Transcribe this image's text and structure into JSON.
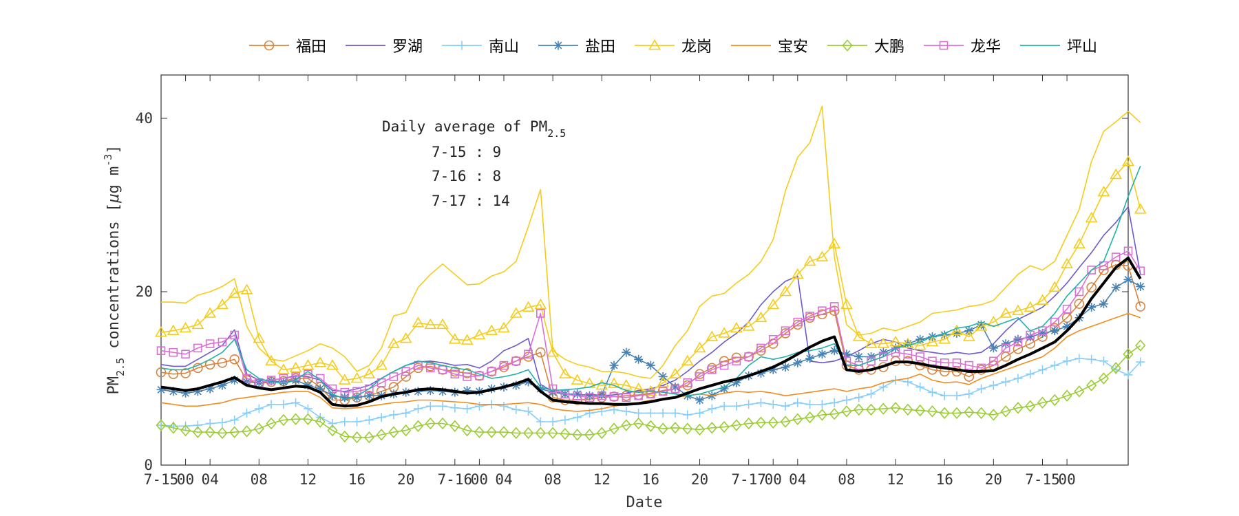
{
  "chart_data": {
    "type": "line",
    "xlabel": "Date",
    "ylabel": "PM",
    "ylabel_sub": "2.5",
    "ylabel_rest": " concentrations [",
    "ylabel_mu": "μ",
    "ylabel_unit": "g m",
    "ylabel_sup": "-3",
    "ylabel_close": "]",
    "ylim": [
      0,
      45
    ],
    "yticks": [
      0,
      20,
      40
    ],
    "xlim": [
      0,
      79
    ],
    "xtick_labels": [
      {
        "x": 0,
        "label": "7-15"
      },
      {
        "x": 2,
        "label": "00"
      },
      {
        "x": 4,
        "label": "04"
      },
      {
        "x": 8,
        "label": "08"
      },
      {
        "x": 12,
        "label": "12"
      },
      {
        "x": 16,
        "label": "16"
      },
      {
        "x": 20,
        "label": "20"
      },
      {
        "x": 24,
        "label": "7-16"
      },
      {
        "x": 26,
        "label": "00"
      },
      {
        "x": 28,
        "label": "04"
      },
      {
        "x": 32,
        "label": "08"
      },
      {
        "x": 36,
        "label": "12"
      },
      {
        "x": 40,
        "label": "16"
      },
      {
        "x": 44,
        "label": "20"
      },
      {
        "x": 48,
        "label": "7-17"
      },
      {
        "x": 50,
        "label": "00"
      },
      {
        "x": 52,
        "label": "04"
      },
      {
        "x": 56,
        "label": "08"
      },
      {
        "x": 60,
        "label": "12"
      },
      {
        "x": 64,
        "label": "16"
      },
      {
        "x": 68,
        "label": "20"
      },
      {
        "x": 72,
        "label": "7-15"
      },
      {
        "x": 74,
        "label": "00"
      }
    ],
    "annotation": {
      "title": "Daily average of PM",
      "title_sub": "2.5",
      "lines": [
        "7-15 : 9",
        "7-16 : 8",
        "7-17 : 14"
      ]
    },
    "legend_position": "top",
    "series": [
      {
        "name": "福田",
        "color": "#D9823B",
        "marker": "circle",
        "values": [
          10.7,
          10.5,
          10.6,
          11.2,
          11.6,
          11.8,
          12.2,
          9.8,
          9.4,
          9.6,
          9.7,
          10.0,
          10.0,
          9.0,
          7.5,
          7.5,
          7.8,
          8.0,
          8.5,
          9.0,
          10.2,
          11.2,
          11.4,
          11.0,
          10.8,
          10.6,
          10.3,
          10.8,
          11.3,
          12.0,
          12.5,
          13.0,
          7.8,
          7.5,
          7.5,
          7.6,
          7.8,
          7.9,
          8.0,
          8.1,
          8.3,
          8.6,
          8.8,
          9.2,
          10.5,
          11.2,
          12.0,
          12.4,
          12.5,
          13.2,
          14.0,
          15.2,
          16.2,
          17.0,
          17.4,
          17.8,
          11.5,
          11.0,
          11.0,
          11.3,
          12.0,
          12.0,
          11.5,
          11.0,
          10.8,
          10.8,
          10.2,
          11.0,
          11.5,
          12.5,
          13.4,
          14.0,
          14.8,
          15.8,
          17.0,
          18.6,
          20.5,
          22.5,
          23.1,
          23.0,
          18.3
        ]
      },
      {
        "name": "罗湖",
        "color": "#6A5ACD",
        "marker": "none",
        "values": [
          11.6,
          11.4,
          11.4,
          12.2,
          13.0,
          13.8,
          15.6,
          10.5,
          9.8,
          9.8,
          10.0,
          10.3,
          10.2,
          9.8,
          8.6,
          8.5,
          8.8,
          9.2,
          10.0,
          10.8,
          11.5,
          11.9,
          12.0,
          11.8,
          11.5,
          11.6,
          11.2,
          12.0,
          13.2,
          13.8,
          14.6,
          9.3,
          8.5,
          8.2,
          8.0,
          8.2,
          8.0,
          8.1,
          8.3,
          8.6,
          8.8,
          9.2,
          9.8,
          10.8,
          12.0,
          13.0,
          14.2,
          15.2,
          16.5,
          18.5,
          20.0,
          21.2,
          21.8,
          12.0,
          11.8,
          12.0,
          12.5,
          13.2,
          14.0,
          14.5,
          14.2,
          13.5,
          13.2,
          13.0,
          12.8,
          13.0,
          12.8,
          13.0,
          14.0,
          15.5,
          16.8,
          17.5,
          18.2,
          19.5,
          21.0,
          22.8,
          24.5,
          26.5,
          28.0,
          29.8,
          22.0
        ]
      },
      {
        "name": "南山",
        "color": "#87CEFA",
        "marker": "plus",
        "values": [
          4.6,
          4.5,
          4.5,
          4.6,
          4.8,
          4.9,
          5.2,
          6.0,
          6.5,
          7.0,
          7.0,
          7.2,
          6.5,
          5.5,
          4.8,
          5.0,
          5.0,
          5.2,
          5.5,
          5.8,
          6.0,
          6.5,
          6.8,
          6.8,
          6.6,
          6.5,
          6.8,
          7.0,
          6.8,
          6.4,
          6.2,
          5.0,
          5.0,
          5.2,
          5.5,
          6.0,
          6.2,
          6.4,
          6.2,
          6.0,
          6.0,
          6.0,
          6.0,
          5.8,
          6.0,
          6.5,
          6.8,
          6.8,
          7.0,
          7.2,
          7.0,
          6.8,
          7.2,
          7.0,
          7.0,
          7.2,
          7.5,
          7.8,
          8.2,
          9.0,
          9.8,
          9.6,
          9.0,
          8.4,
          8.0,
          8.0,
          8.2,
          8.8,
          9.2,
          9.6,
          10.0,
          10.5,
          11.0,
          11.5,
          12.0,
          12.3,
          12.2,
          12.0,
          11.0,
          10.4,
          11.9
        ]
      },
      {
        "name": "盐田",
        "color": "#4682B4",
        "marker": "star",
        "values": [
          8.7,
          8.5,
          8.3,
          8.5,
          8.8,
          9.2,
          9.8,
          9.6,
          9.5,
          9.7,
          9.6,
          9.8,
          9.2,
          8.8,
          8.0,
          7.8,
          7.8,
          8.0,
          8.0,
          8.2,
          8.4,
          8.5,
          8.6,
          8.5,
          8.4,
          8.6,
          8.5,
          8.8,
          9.0,
          9.2,
          9.6,
          8.8,
          8.4,
          8.2,
          8.2,
          8.0,
          8.1,
          11.5,
          13.0,
          12.2,
          11.5,
          10.2,
          9.0,
          8.0,
          7.5,
          8.0,
          8.8,
          9.5,
          10.3,
          10.6,
          11.0,
          11.3,
          11.8,
          12.3,
          12.8,
          13.2,
          12.8,
          12.5,
          12.5,
          13.0,
          13.5,
          14.0,
          14.5,
          14.8,
          15.0,
          15.2,
          15.5,
          16.2,
          13.5,
          14.0,
          14.5,
          14.8,
          15.2,
          15.5,
          16.0,
          17.0,
          18.2,
          18.6,
          20.5,
          21.4,
          20.6
        ]
      },
      {
        "name": "龙岗",
        "color": "#F5CC1B",
        "marker": "triangle",
        "values": [
          15.3,
          15.5,
          15.8,
          16.2,
          17.5,
          18.5,
          19.8,
          20.2,
          14.6,
          12.0,
          11.0,
          11.2,
          11.5,
          11.8,
          11.5,
          9.8,
          10.0,
          10.5,
          11.5,
          14.0,
          14.6,
          16.4,
          16.2,
          16.2,
          14.5,
          14.4,
          15.0,
          15.5,
          15.8,
          17.5,
          18.2,
          18.5,
          13.0,
          10.5,
          9.8,
          9.4,
          9.2,
          9.4,
          9.2,
          8.8,
          8.5,
          9.5,
          10.5,
          12.0,
          13.5,
          14.8,
          15.2,
          15.8,
          16.0,
          17.0,
          18.5,
          20.0,
          22.0,
          23.5,
          24.0,
          25.5,
          18.5,
          14.8,
          14.0,
          14.0,
          14.2,
          14.0,
          13.8,
          14.2,
          14.5,
          15.5,
          14.8,
          16.0,
          16.5,
          17.5,
          17.8,
          18.2,
          19.0,
          20.5,
          23.2,
          25.5,
          28.5,
          31.5,
          33.5,
          35.0,
          29.5
        ]
      },
      {
        "name": "宝安",
        "color": "#F28C1E",
        "marker": "none",
        "values": [
          7.2,
          7.0,
          6.8,
          6.8,
          7.0,
          7.2,
          7.6,
          7.8,
          8.0,
          8.2,
          8.4,
          8.5,
          8.5,
          7.8,
          6.6,
          6.5,
          6.6,
          6.8,
          7.0,
          7.2,
          7.3,
          7.5,
          7.5,
          7.4,
          7.3,
          7.2,
          7.0,
          7.0,
          7.0,
          7.1,
          7.2,
          7.0,
          6.5,
          6.3,
          6.2,
          6.3,
          6.5,
          6.8,
          7.0,
          7.2,
          7.5,
          7.5,
          7.8,
          8.0,
          8.2,
          8.0,
          8.3,
          8.5,
          8.4,
          8.5,
          8.3,
          8.0,
          8.2,
          8.4,
          8.6,
          8.8,
          8.5,
          8.8,
          9.0,
          9.5,
          9.8,
          10.0,
          10.5,
          9.8,
          9.5,
          9.6,
          9.3,
          10.0,
          10.5,
          11.0,
          11.5,
          12.0,
          12.5,
          13.5,
          14.8,
          15.5,
          16.0,
          16.5,
          17.0,
          17.5,
          17.0
        ]
      },
      {
        "name": "大鹏",
        "color": "#9ACD32",
        "marker": "diamond",
        "values": [
          4.6,
          4.3,
          4.0,
          3.8,
          3.8,
          3.7,
          3.8,
          3.9,
          4.2,
          4.8,
          5.2,
          5.3,
          5.3,
          5.0,
          4.0,
          3.3,
          3.2,
          3.2,
          3.5,
          3.8,
          4.0,
          4.5,
          4.8,
          4.8,
          4.5,
          4.0,
          3.8,
          3.8,
          3.8,
          3.7,
          3.7,
          3.7,
          3.7,
          3.6,
          3.5,
          3.5,
          3.7,
          4.2,
          4.6,
          4.8,
          4.5,
          4.2,
          4.3,
          4.2,
          4.1,
          4.3,
          4.4,
          4.6,
          4.8,
          4.9,
          4.9,
          5.0,
          5.3,
          5.5,
          5.8,
          5.9,
          6.2,
          6.4,
          6.4,
          6.5,
          6.6,
          6.4,
          6.3,
          6.2,
          6.0,
          6.0,
          6.1,
          6.0,
          5.8,
          6.2,
          6.6,
          6.8,
          7.2,
          7.5,
          8.0,
          8.5,
          9.2,
          10.0,
          11.2,
          12.8,
          13.8
        ]
      },
      {
        "name": "龙华",
        "color": "#DA70D6",
        "marker": "square",
        "values": [
          13.2,
          13.0,
          12.8,
          13.5,
          14.0,
          14.2,
          15.0,
          10.0,
          9.5,
          9.8,
          10.0,
          10.2,
          10.5,
          10.0,
          8.8,
          8.4,
          8.5,
          8.8,
          9.5,
          10.2,
          10.8,
          11.5,
          11.2,
          11.0,
          10.5,
          10.2,
          10.3,
          10.8,
          11.5,
          12.0,
          12.8,
          17.5,
          8.8,
          8.2,
          8.0,
          7.8,
          8.0,
          7.9,
          7.8,
          8.0,
          8.2,
          8.5,
          8.8,
          9.5,
          10.2,
          11.0,
          11.5,
          12.0,
          12.5,
          13.5,
          14.5,
          15.5,
          16.5,
          17.2,
          17.8,
          18.3,
          12.0,
          11.5,
          12.0,
          12.5,
          13.0,
          12.8,
          12.5,
          12.0,
          11.8,
          11.8,
          11.5,
          11.2,
          12.0,
          13.5,
          14.2,
          15.0,
          15.5,
          16.5,
          18.0,
          20.0,
          22.5,
          23.0,
          24.0,
          24.7,
          22.4
        ]
      },
      {
        "name": "坪山",
        "color": "#20B2AA",
        "marker": "none",
        "values": [
          11.2,
          11.0,
          11.0,
          11.5,
          12.2,
          13.0,
          14.5,
          11.0,
          10.0,
          9.6,
          9.4,
          9.8,
          10.8,
          9.8,
          8.2,
          7.6,
          8.0,
          8.8,
          10.0,
          10.8,
          11.5,
          12.0,
          11.8,
          11.5,
          11.2,
          11.0,
          10.5,
          10.0,
          10.2,
          10.5,
          11.0,
          9.0,
          8.6,
          8.7,
          8.8,
          9.0,
          9.5,
          9.2,
          8.6,
          8.4,
          8.5,
          8.4,
          8.2,
          8.0,
          8.2,
          8.6,
          9.0,
          10.0,
          11.5,
          12.5,
          12.2,
          12.5,
          13.0,
          13.2,
          13.5,
          14.0,
          11.5,
          11.5,
          12.0,
          12.5,
          13.5,
          13.8,
          14.2,
          14.8,
          15.2,
          15.8,
          16.0,
          16.5,
          16.0,
          16.5,
          17.0,
          15.5,
          16.0,
          17.5,
          19.5,
          21.0,
          22.5,
          23.5,
          27.0,
          31.0,
          34.5
        ]
      },
      {
        "name": "",
        "color": "#F5CC1B",
        "marker": "none",
        "width": 1.6,
        "values": [
          18.8,
          18.8,
          18.7,
          19.6,
          20.0,
          20.6,
          21.5,
          16.0,
          13.5,
          12.2,
          12.0,
          12.6,
          13.2,
          14.0,
          13.5,
          12.5,
          10.8,
          11.5,
          13.5,
          17.2,
          17.6,
          20.5,
          22.0,
          23.2,
          22.0,
          20.8,
          20.9,
          21.8,
          22.3,
          23.5,
          27.5,
          31.8,
          13.2,
          12.2,
          11.6,
          11.3,
          10.8,
          10.8,
          10.6,
          10.2,
          10.0,
          11.5,
          13.8,
          15.5,
          18.3,
          19.5,
          19.8,
          21.0,
          22.0,
          23.5,
          26.0,
          31.6,
          35.5,
          37.2,
          41.4,
          24.0,
          16.2,
          15.0,
          15.2,
          15.8,
          15.5,
          16.0,
          16.5,
          17.5,
          17.7,
          17.9,
          18.3,
          18.5,
          19.0,
          20.5,
          22.0,
          23.0,
          22.5,
          23.5,
          26.5,
          29.5,
          35.0,
          38.5,
          39.6,
          40.8,
          39.5
        ]
      },
      {
        "name": "",
        "color": "#000000",
        "marker": "none",
        "width": 4,
        "values": [
          9.0,
          8.8,
          8.6,
          8.8,
          9.2,
          9.6,
          10.1,
          9.2,
          8.9,
          8.7,
          8.9,
          9.1,
          9.0,
          8.4,
          7.0,
          6.8,
          6.9,
          7.3,
          7.9,
          8.2,
          8.4,
          8.7,
          8.8,
          8.7,
          8.5,
          8.3,
          8.4,
          8.7,
          9.0,
          9.4,
          9.9,
          8.5,
          7.5,
          7.3,
          7.2,
          7.1,
          7.1,
          7.0,
          7.0,
          7.1,
          7.3,
          7.6,
          7.8,
          8.3,
          8.8,
          9.2,
          9.6,
          9.9,
          10.3,
          10.8,
          11.3,
          12.0,
          12.8,
          13.6,
          14.3,
          14.8,
          11.0,
          10.8,
          11.0,
          11.4,
          11.9,
          11.9,
          11.7,
          11.4,
          11.2,
          11.0,
          10.8,
          10.8,
          10.9,
          11.5,
          12.2,
          12.8,
          13.5,
          14.2,
          15.5,
          17.0,
          19.2,
          21.0,
          22.8,
          23.9,
          21.5
        ]
      }
    ]
  }
}
